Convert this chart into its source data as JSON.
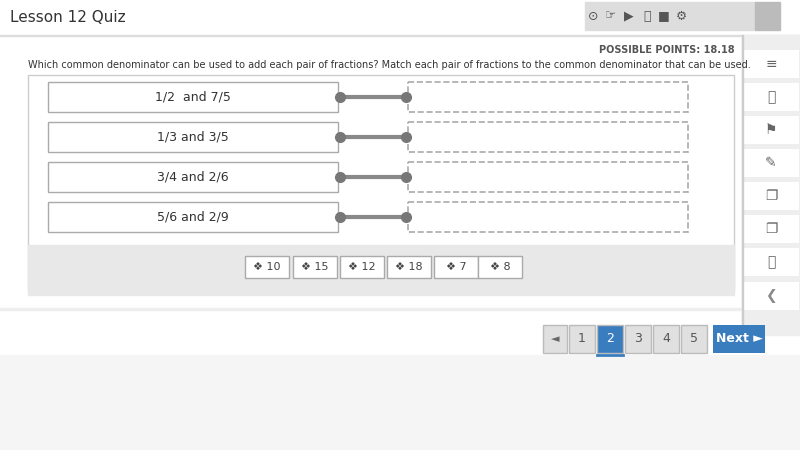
{
  "title": "Lesson 12 Quiz",
  "possible_points": "POSSIBLE POINTS: 18.18",
  "question": "Which common denominator can be used to add each pair of fractions? Match each pair of fractions to the common denominator that can be used.",
  "left_items": [
    "1/2  and 7/5",
    "1/3 and 3/5",
    "3/4 and 2/6",
    "5/6 and 2/9"
  ],
  "answer_options": [
    "❖ 10",
    "❖ 15",
    "❖ 12",
    "❖ 18",
    "❖ 7",
    "❖ 8"
  ],
  "bg_top": "#ffffff",
  "bg_main": "#ffffff",
  "bg_bottom": "#f5f5f5",
  "bg_outer": "#f0f0f0",
  "sidebar_bg": "#eeeeee",
  "light_gray": "#e8e8e8",
  "connector_color": "#888888",
  "page_numbers": [
    "1",
    "2",
    "3",
    "4",
    "5"
  ],
  "active_page": "2",
  "active_page_color": "#3a7dbf",
  "toolbar_bg": "#dddddd",
  "toolbar_icon_color": "#555555"
}
